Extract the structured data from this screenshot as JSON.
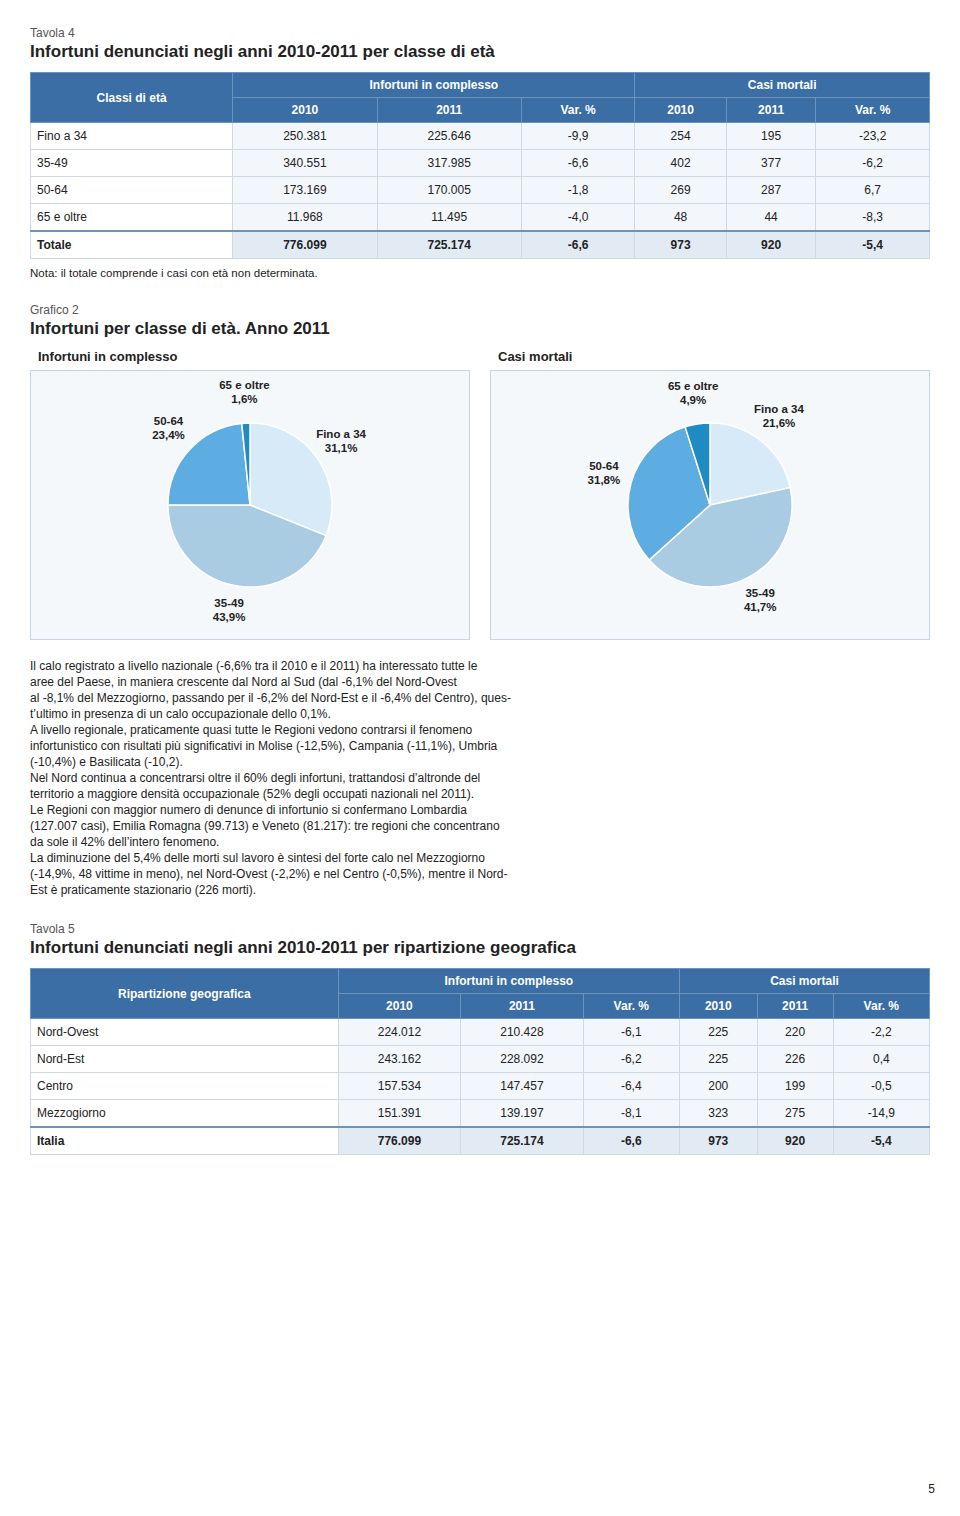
{
  "chart_data": [
    {
      "type": "table",
      "label": "Tavola 4",
      "title": "Infortuni denunciati negli anni 2010-2011 per classe di età",
      "group_headers": [
        "Infortuni in complesso",
        "Casi mortali"
      ],
      "columns": [
        "Classi di età",
        "2010",
        "2011",
        "Var. %",
        "2010",
        "2011",
        "Var. %"
      ],
      "rows": [
        [
          "Fino a 34",
          "250.381",
          "225.646",
          "-9,9",
          "254",
          "195",
          "-23,2"
        ],
        [
          "35-49",
          "340.551",
          "317.985",
          "-6,6",
          "402",
          "377",
          "-6,2"
        ],
        [
          "50-64",
          "173.169",
          "170.005",
          "-1,8",
          "269",
          "287",
          "6,7"
        ],
        [
          "65 e oltre",
          "11.968",
          "11.495",
          "-4,0",
          "48",
          "44",
          "-8,3"
        ]
      ],
      "total": [
        "Totale",
        "776.099",
        "725.174",
        "-6,6",
        "973",
        "920",
        "-5,4"
      ],
      "note": "Nota: il totale comprende i casi con età non determinata."
    },
    {
      "type": "pie",
      "title": "Infortuni in complesso",
      "categories": [
        "Fino a 34",
        "35-49",
        "50-64",
        "65 e oltre"
      ],
      "values": [
        31.1,
        43.9,
        23.4,
        1.6
      ],
      "value_labels": [
        "31,1%",
        "43,9%",
        "23,4%",
        "1,6%"
      ],
      "colors": [
        "#d6eaf8",
        "#a9cce3",
        "#5dade2",
        "#1e8bc3"
      ],
      "data_labels": true
    },
    {
      "type": "pie",
      "title": "Casi mortali",
      "categories": [
        "Fino a 34",
        "35-49",
        "50-64",
        "65 e oltre"
      ],
      "values": [
        21.6,
        41.7,
        31.8,
        4.9
      ],
      "value_labels": [
        "21,6%",
        "41,7%",
        "31,8%",
        "4,9%"
      ],
      "colors": [
        "#d6eaf8",
        "#a9cce3",
        "#5dade2",
        "#1e8bc3"
      ],
      "data_labels": true
    },
    {
      "type": "table",
      "label": "Tavola 5",
      "title": "Infortuni denunciati negli anni 2010-2011 per ripartizione geografica",
      "group_headers": [
        "Infortuni in complesso",
        "Casi mortali"
      ],
      "columns": [
        "Ripartizione geografica",
        "2010",
        "2011",
        "Var. %",
        "2010",
        "2011",
        "Var. %"
      ],
      "rows": [
        [
          "Nord-Ovest",
          "224.012",
          "210.428",
          "-6,1",
          "225",
          "220",
          "-2,2"
        ],
        [
          "Nord-Est",
          "243.162",
          "228.092",
          "-6,2",
          "225",
          "226",
          "0,4"
        ],
        [
          "Centro",
          "157.534",
          "147.457",
          "-6,4",
          "200",
          "199",
          "-0,5"
        ],
        [
          "Mezzogiorno",
          "151.391",
          "139.197",
          "-8,1",
          "323",
          "275",
          "-14,9"
        ]
      ],
      "total": [
        "Italia",
        "776.099",
        "725.174",
        "-6,6",
        "973",
        "920",
        "-5,4"
      ]
    }
  ],
  "figure_label": "Grafico 2",
  "figure_title": "Infortuni per classe di età. Anno 2011",
  "annotations": [
    "Il calo registrato a livello nazionale (-6,6% tra il 2010 e il 2011) ha interessato tutte le",
    "aree del Paese, in maniera crescente dal Nord al Sud (dal -6,1% del Nord-Ovest",
    "al -8,1% del Mezzogiorno, passando per il -6,2% del Nord-Est e il -6,4% del Centro), ques-",
    "t’ultimo in presenza di un calo occupazionale dello 0,1%.",
    "A livello regionale, praticamente quasi tutte le Regioni vedono contrarsi il fenomeno",
    "infortunistico con risultati più significativi in Molise (-12,5%), Campania (-11,1%), Umbria",
    "(-10,4%) e Basilicata (-10,2).",
    "Nel Nord continua a concentrarsi oltre il 60% degli infortuni, trattandosi d’altronde del",
    "territorio a maggiore densità occupazionale (52% degli occupati nazionali nel 2011).",
    "Le Regioni con maggior numero di denunce di infortunio si confermano Lombardia",
    "(127.007 casi), Emilia Romagna (99.713) e Veneto (81.217): tre regioni che concentrano",
    "da sole il 42% dell’intero fenomeno.",
    "La diminuzione del 5,4% delle morti sul lavoro è sintesi del forte calo nel Mezzogiorno",
    "(-14,9%, 48 vittime in meno), nel Nord-Ovest (-2,2%) e nel Centro (-0,5%), mentre il Nord-",
    "Est è praticamente stazionario (226 morti)."
  ],
  "page_number": "5"
}
